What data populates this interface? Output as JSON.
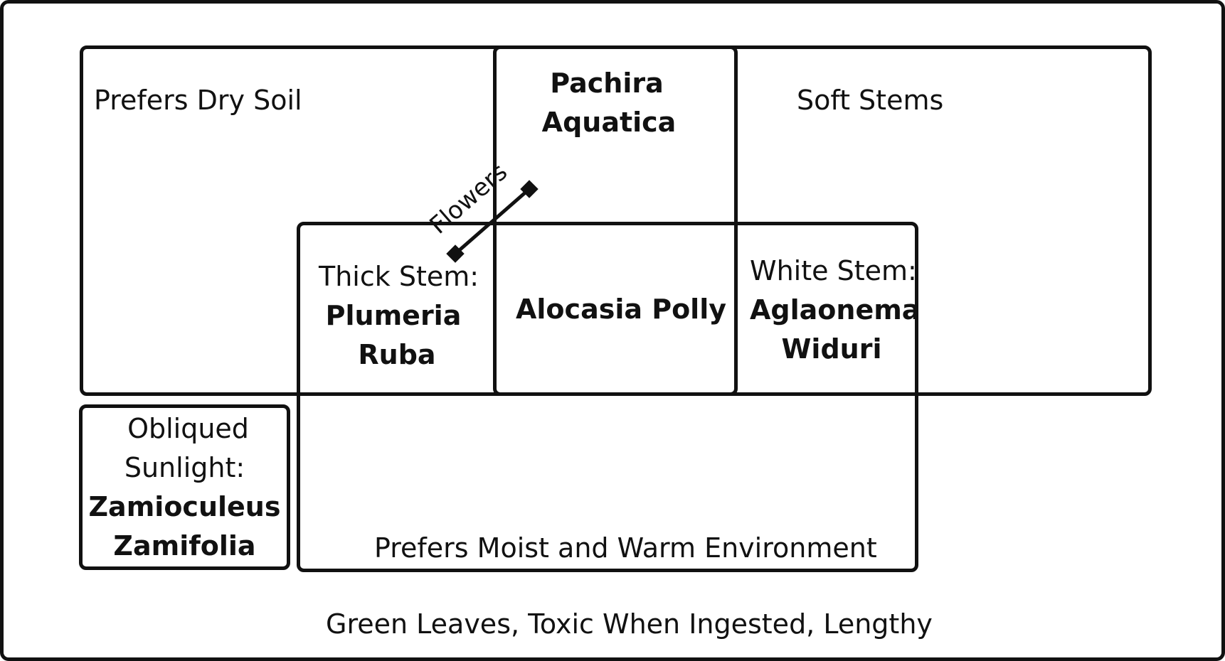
{
  "regions": {
    "dry_soil_label": "Prefers Dry Soil",
    "soft_stems_label": "Soft Stems",
    "moist_label": "Prefers Moist and Warm Environment",
    "outer_label": "Green Leaves, Toxic When Ingested, Lengthy"
  },
  "connector": {
    "label": "Flowers"
  },
  "plants": {
    "pachira": {
      "line1": "Pachira",
      "line2": "Aquatica"
    },
    "plumeria": {
      "prefix": "Thick Stem:",
      "line1": "Plumeria",
      "line2": "Ruba"
    },
    "alocasia": {
      "name": "Alocasia Polly"
    },
    "aglaonema": {
      "prefix": "White Stem:",
      "line1": "Aglaonema",
      "line2": "Widuri"
    },
    "zamioculcas": {
      "prefix_line1": "Obliqued",
      "prefix_line2": "Sunlight:",
      "line1": "Zamioculeus",
      "line2": "Zamifolia"
    }
  }
}
